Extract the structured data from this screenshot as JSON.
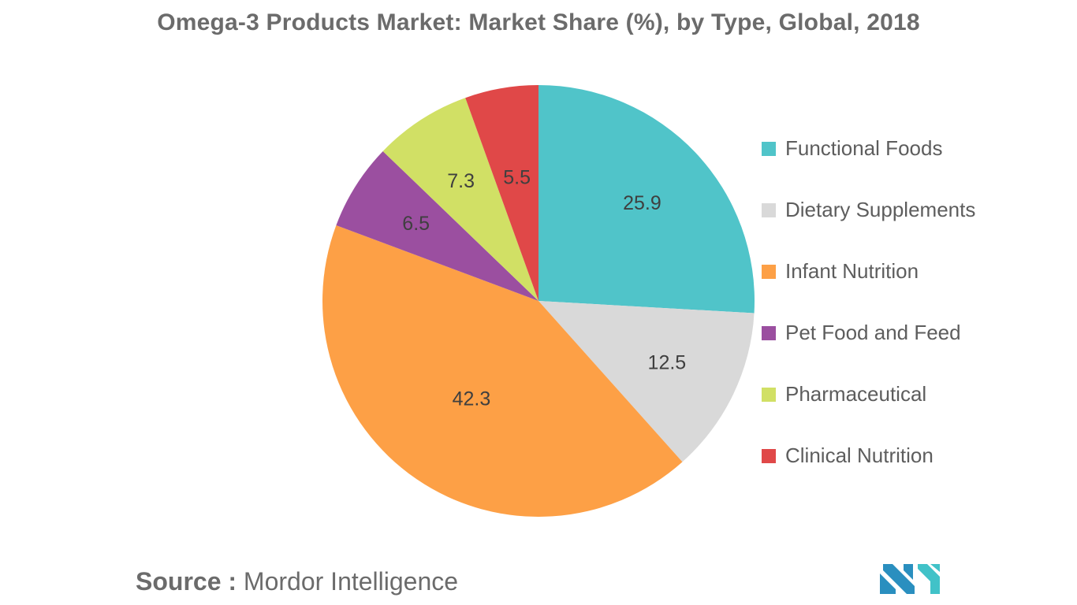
{
  "chart_data": {
    "type": "pie",
    "title": "Omega-3 Products Market: Market Share (%), by Type, Global, 2018",
    "categories": [
      "Functional Foods",
      "Dietary Supplements",
      "Infant Nutrition",
      "Pet Food and Feed",
      "Pharmaceutical",
      "Clinical Nutrition"
    ],
    "values": [
      25.9,
      12.5,
      42.3,
      6.5,
      7.3,
      5.5
    ],
    "data_labels": [
      "25.9",
      "12.5",
      "42.3",
      "6.5",
      "7.3",
      "5.5"
    ],
    "colors": [
      "#50c4c9",
      "#d9d9d9",
      "#fda046",
      "#9b4fa0",
      "#d1e065",
      "#e04848"
    ],
    "start_angle": "12 o'clock",
    "direction": "clockwise",
    "legend_position": "right"
  },
  "source": {
    "prefix": "Source :",
    "name": "Mordor Intelligence"
  },
  "logo": {
    "icon": "mordor-intelligence-logo",
    "colors": [
      "#2a8fbf",
      "#41c2c8"
    ]
  }
}
